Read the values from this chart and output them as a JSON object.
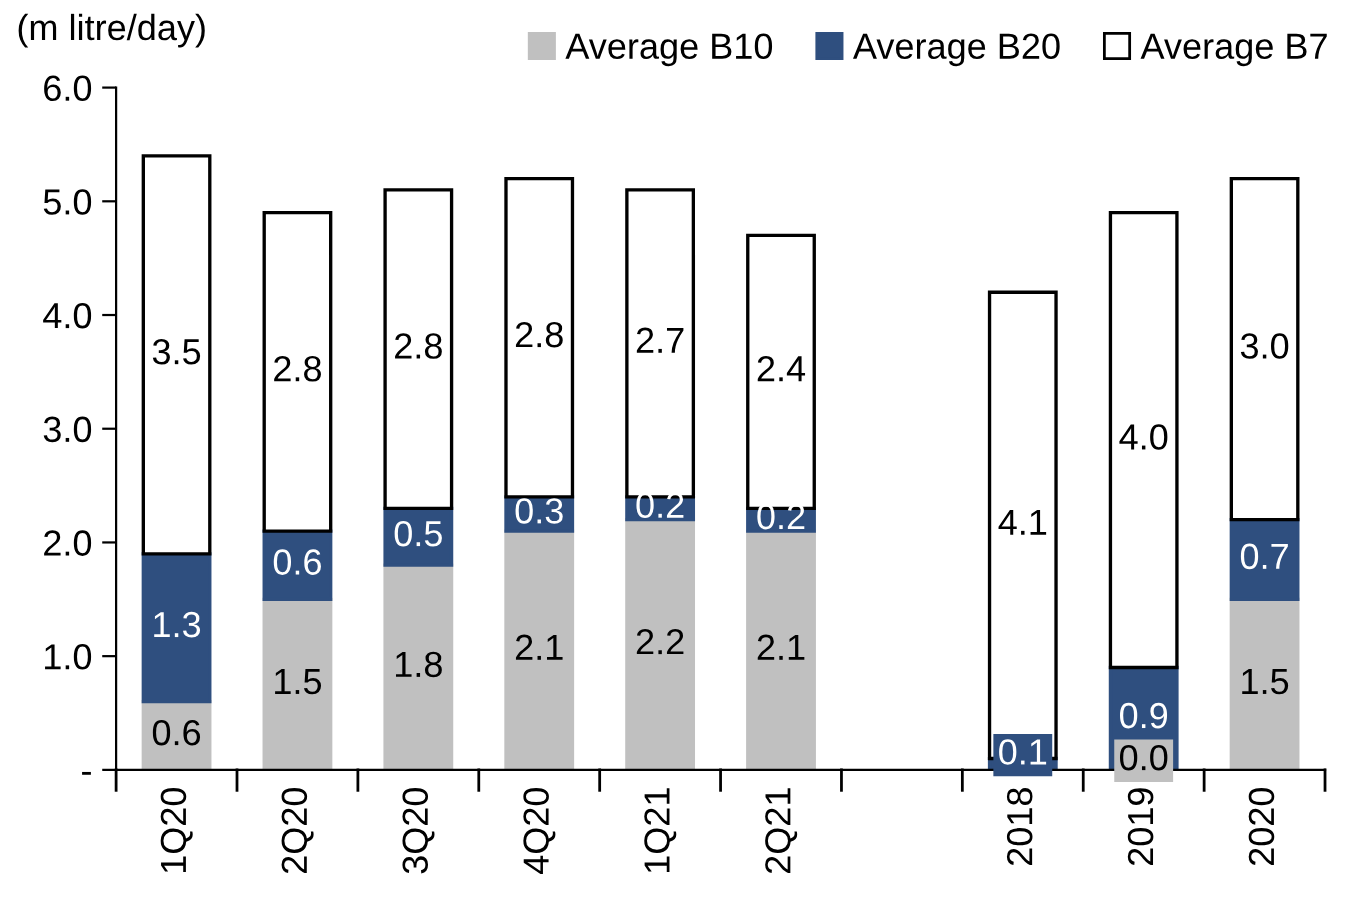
{
  "chart_data": {
    "type": "bar",
    "stacked": true,
    "ylabel": "(m litre/day)",
    "categories": [
      "1Q20",
      "2Q20",
      "3Q20",
      "4Q20",
      "1Q21",
      "2Q21",
      null,
      "2018",
      "2019",
      "2020"
    ],
    "series": [
      {
        "name": "Average B10",
        "color": "#c0c0c0",
        "values": [
          0.6,
          1.5,
          1.8,
          2.1,
          2.2,
          2.1,
          null,
          0.0,
          0.0,
          1.5
        ],
        "value_labels": [
          "0.6",
          "1.5",
          "1.8",
          "2.1",
          "2.2",
          "2.1",
          null,
          null,
          "0.0",
          "1.5"
        ]
      },
      {
        "name": "Average B20",
        "color": "#2f4f7f",
        "values": [
          1.3,
          0.6,
          0.5,
          0.3,
          0.2,
          0.2,
          null,
          0.1,
          0.9,
          0.7
        ],
        "value_labels": [
          "1.3",
          "0.6",
          "0.5",
          "0.3",
          "0.2",
          "0.2",
          null,
          "0.1",
          "0.9",
          "0.7"
        ]
      },
      {
        "name": "Average B7",
        "color": "#ffffff",
        "values": [
          3.5,
          2.8,
          2.8,
          2.8,
          2.7,
          2.4,
          null,
          4.1,
          4.0,
          3.0
        ],
        "value_labels": [
          "3.5",
          "2.8",
          "2.8",
          "2.8",
          "2.7",
          "2.4",
          null,
          "4.1",
          "4.0",
          "3.0"
        ]
      }
    ],
    "ylim": [
      0,
      6
    ],
    "yticks": [
      {
        "value": 0,
        "label": "-"
      },
      {
        "value": 1,
        "label": "1.0"
      },
      {
        "value": 2,
        "label": "2.0"
      },
      {
        "value": 3,
        "label": "3.0"
      },
      {
        "value": 4,
        "label": "4.0"
      },
      {
        "value": 5,
        "label": "5.0"
      },
      {
        "value": 6,
        "label": "6.0"
      }
    ],
    "legend": "top",
    "grid": false
  }
}
